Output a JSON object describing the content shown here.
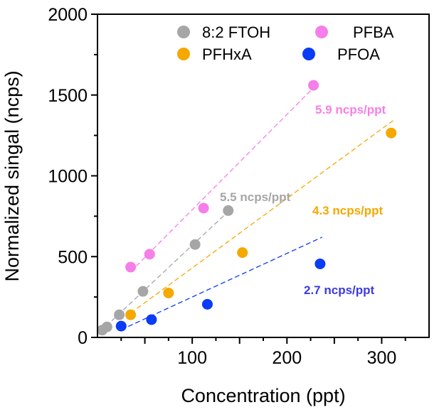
{
  "chart_data": {
    "type": "scatter",
    "title": "",
    "xlabel": "Concentration (ppt)",
    "ylabel": "Normalized singal (ncps)",
    "xlim": [
      0,
      350
    ],
    "ylim": [
      0,
      2000
    ],
    "xticks": [
      100,
      200,
      300
    ],
    "yticks": [
      0,
      500,
      1000,
      1500,
      2000
    ],
    "grid": false,
    "legend_position": "top-right",
    "series": [
      {
        "name": "8:2 FTOH",
        "color": "#a6a6a6",
        "x": [
          5,
          10,
          23,
          48,
          103,
          138
        ],
        "y": [
          45,
          65,
          140,
          285,
          575,
          785
        ],
        "fit_x": [
          3,
          142
        ],
        "fit_slope": 5.5,
        "fit_intercept": 20,
        "annotation": "5.5 ncps/ppt"
      },
      {
        "name": "PFBA",
        "color": "#f57fe8",
        "x": [
          35,
          55,
          112,
          228
        ],
        "y": [
          435,
          515,
          800,
          1560
        ],
        "fit_x": [
          35,
          230
        ],
        "fit_slope": 5.9,
        "fit_intercept": 200,
        "annotation": "5.9 ncps/ppt"
      },
      {
        "name": "PFHxA",
        "color": "#f5a800",
        "x": [
          35,
          75,
          153,
          310
        ],
        "y": [
          140,
          275,
          525,
          1265
        ],
        "fit_x": [
          35,
          312
        ],
        "fit_slope": 4.3,
        "fit_intercept": 0,
        "annotation": "4.3 ncps/ppt"
      },
      {
        "name": "PFOA",
        "color": "#0a3cf5",
        "x": [
          25,
          57,
          116,
          235
        ],
        "y": [
          70,
          110,
          205,
          455
        ],
        "fit_x": [
          25,
          237
        ],
        "fit_slope": 2.7,
        "fit_intercept": -20,
        "annotation": "2.7 ncps/ppt"
      }
    ],
    "annotation_colors": {
      "8:2 FTOH": "#a6a6a6",
      "PFBA": "#f57fe8",
      "PFHxA": "#f5a800",
      "PFOA": "#3b3be6"
    }
  }
}
